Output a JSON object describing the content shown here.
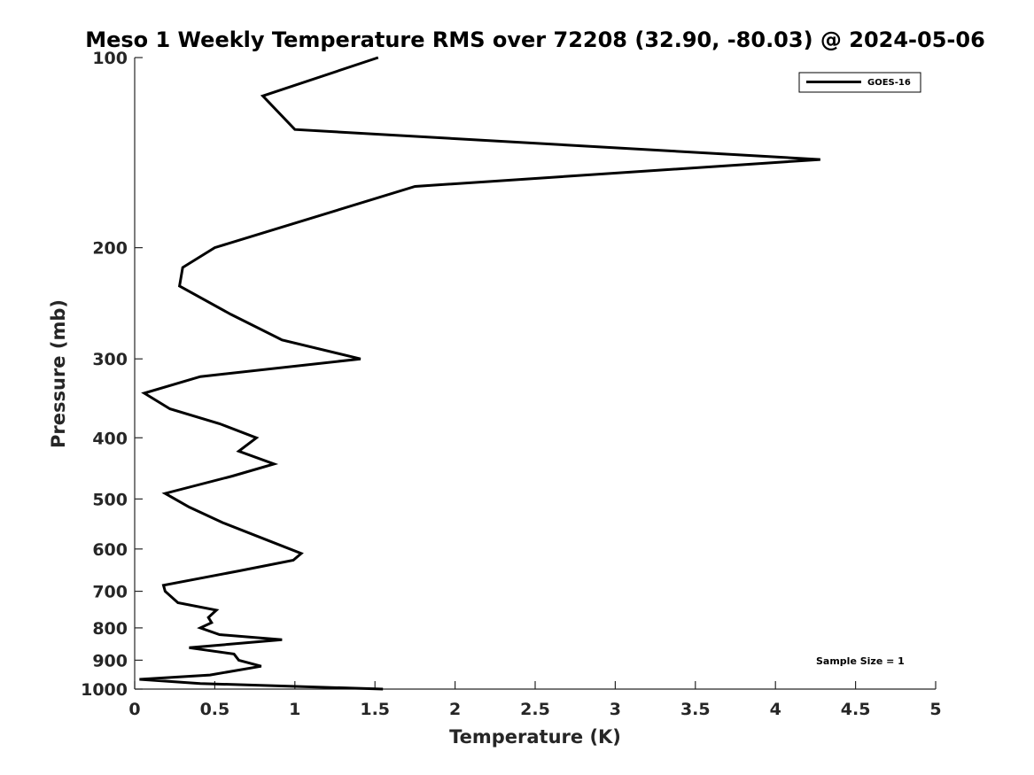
{
  "chart_data": {
    "type": "line",
    "title": "Meso 1 Weekly Temperature RMS over 72208 (32.90, -80.03) @ 2024-05-06",
    "xlabel": "Temperature (K)",
    "ylabel": "Pressure (mb)",
    "xlim": [
      0,
      5
    ],
    "ylim": [
      100,
      1000
    ],
    "y_scale": "log",
    "y_reversed": true,
    "x_ticks": [
      "0",
      "0.5",
      "1",
      "1.5",
      "2",
      "2.5",
      "3",
      "3.5",
      "4",
      "4.5",
      "5"
    ],
    "x_tick_values": [
      0,
      0.5,
      1,
      1.5,
      2,
      2.5,
      3,
      3.5,
      4,
      4.5,
      5
    ],
    "y_ticks": [
      "100",
      "200",
      "300",
      "400",
      "500",
      "600",
      "700",
      "800",
      "900",
      "1000"
    ],
    "y_tick_values": [
      100,
      200,
      300,
      400,
      500,
      600,
      700,
      800,
      900,
      1000
    ],
    "grid": false,
    "legend_position": "top-right",
    "annotation": "Sample Size = 1",
    "series": [
      {
        "name": "GOES-16",
        "color": "#000000",
        "points": [
          [
            1.52,
            100
          ],
          [
            0.8,
            115
          ],
          [
            1.0,
            130
          ],
          [
            4.28,
            145
          ],
          [
            1.75,
            160
          ],
          [
            0.5,
            200
          ],
          [
            0.3,
            215
          ],
          [
            0.28,
            230
          ],
          [
            0.6,
            255
          ],
          [
            0.92,
            280
          ],
          [
            1.41,
            300
          ],
          [
            0.41,
            320
          ],
          [
            0.06,
            340
          ],
          [
            0.22,
            360
          ],
          [
            0.53,
            380
          ],
          [
            0.76,
            400
          ],
          [
            0.65,
            420
          ],
          [
            0.87,
            440
          ],
          [
            0.61,
            460
          ],
          [
            0.19,
            490
          ],
          [
            0.34,
            515
          ],
          [
            0.55,
            545
          ],
          [
            0.82,
            580
          ],
          [
            1.04,
            610
          ],
          [
            0.99,
            625
          ],
          [
            0.65,
            650
          ],
          [
            0.18,
            685
          ],
          [
            0.19,
            700
          ],
          [
            0.27,
            730
          ],
          [
            0.51,
            750
          ],
          [
            0.46,
            770
          ],
          [
            0.48,
            785
          ],
          [
            0.41,
            800
          ],
          [
            0.53,
            820
          ],
          [
            0.92,
            835
          ],
          [
            0.34,
            860
          ],
          [
            0.62,
            880
          ],
          [
            0.65,
            900
          ],
          [
            0.79,
            920
          ],
          [
            0.47,
            950
          ],
          [
            0.03,
            965
          ],
          [
            0.41,
            980
          ],
          [
            1.55,
            1000
          ]
        ]
      }
    ]
  }
}
